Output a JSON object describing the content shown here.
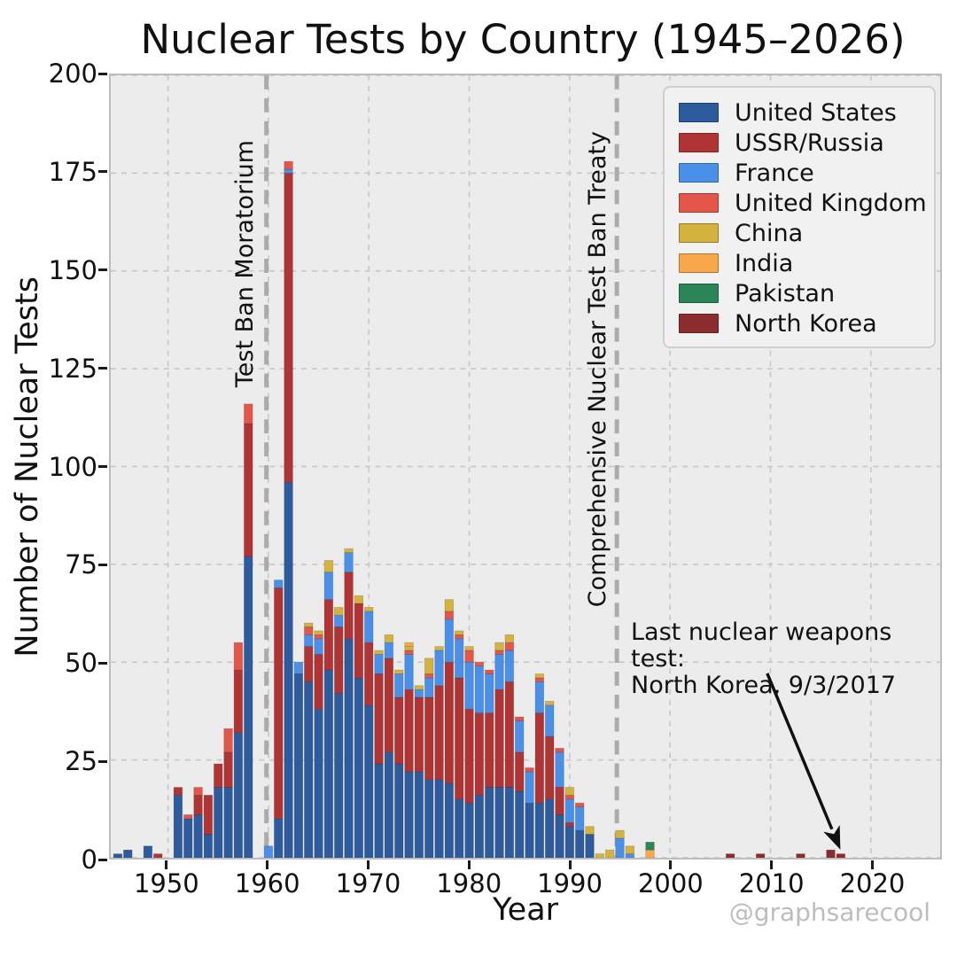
{
  "watermark": "@graphsarecool",
  "chart_data": {
    "type": "bar",
    "stacked": true,
    "title": "Nuclear Tests by Country (1945–2026)",
    "xlabel": "Year",
    "ylabel": "Number of Nuclear Tests",
    "xlim": [
      1944.3,
      2026.9
    ],
    "ylim": [
      0,
      200
    ],
    "x_ticks": [
      1950,
      1960,
      1970,
      1980,
      1990,
      2000,
      2010,
      2020
    ],
    "y_ticks": [
      0,
      25,
      50,
      75,
      100,
      125,
      150,
      175,
      200
    ],
    "grid": true,
    "legend_position": "upper right",
    "bar_width_years": 0.85,
    "plot_background": "#ececec",
    "grid_color": "#c9c9c9",
    "event_line_color": "#ababab",
    "series": [
      {
        "name": "United States",
        "color": "#2d5b9e",
        "data": {
          "1945": 1,
          "1946": 2,
          "1948": 3,
          "1951": 16,
          "1952": 10,
          "1953": 11,
          "1954": 6,
          "1955": 18,
          "1956": 18,
          "1957": 32,
          "1958": 77,
          "1961": 10,
          "1962": 96,
          "1963": 47,
          "1964": 45,
          "1965": 38,
          "1966": 48,
          "1967": 42,
          "1968": 56,
          "1969": 46,
          "1970": 39,
          "1971": 24,
          "1972": 27,
          "1973": 24,
          "1974": 22,
          "1975": 22,
          "1976": 20,
          "1977": 20,
          "1978": 19,
          "1979": 15,
          "1980": 14,
          "1981": 16,
          "1982": 18,
          "1983": 18,
          "1984": 18,
          "1985": 17,
          "1986": 14,
          "1987": 14,
          "1988": 15,
          "1989": 11,
          "1990": 8,
          "1991": 7,
          "1992": 6
        }
      },
      {
        "name": "USSR/Russia",
        "color": "#b13434",
        "data": {
          "1949": 1,
          "1951": 2,
          "1953": 5,
          "1954": 10,
          "1955": 6,
          "1956": 9,
          "1957": 16,
          "1958": 34,
          "1961": 59,
          "1962": 79,
          "1964": 9,
          "1965": 14,
          "1966": 18,
          "1967": 17,
          "1968": 17,
          "1969": 19,
          "1970": 16,
          "1971": 23,
          "1972": 24,
          "1973": 17,
          "1974": 21,
          "1975": 19,
          "1976": 21,
          "1977": 24,
          "1978": 31,
          "1979": 31,
          "1980": 24,
          "1981": 21,
          "1982": 19,
          "1983": 25,
          "1984": 27,
          "1985": 10,
          "1987": 23,
          "1988": 16,
          "1989": 7,
          "1990": 1
        }
      },
      {
        "name": "France",
        "color": "#4a90e8",
        "data": {
          "1960": 3,
          "1961": 2,
          "1962": 1,
          "1963": 3,
          "1964": 3,
          "1965": 4,
          "1966": 7,
          "1967": 3,
          "1968": 5,
          "1970": 8,
          "1971": 5,
          "1972": 4,
          "1973": 6,
          "1974": 9,
          "1975": 2,
          "1976": 5,
          "1977": 9,
          "1978": 11,
          "1979": 10,
          "1980": 12,
          "1981": 12,
          "1982": 10,
          "1983": 9,
          "1984": 8,
          "1985": 8,
          "1986": 8,
          "1987": 8,
          "1988": 8,
          "1989": 9,
          "1990": 6,
          "1991": 6,
          "1995": 5,
          "1996": 1
        }
      },
      {
        "name": "United Kingdom",
        "color": "#e4564a",
        "data": {
          "1952": 1,
          "1953": 2,
          "1956": 6,
          "1957": 7,
          "1958": 5,
          "1962": 2,
          "1964": 2,
          "1965": 1,
          "1974": 1,
          "1976": 1,
          "1978": 2,
          "1979": 1,
          "1980": 3,
          "1981": 1,
          "1982": 1,
          "1983": 1,
          "1984": 2,
          "1985": 1,
          "1986": 1,
          "1987": 1,
          "1989": 1,
          "1990": 1,
          "1991": 1
        }
      },
      {
        "name": "China",
        "color": "#d3b33e",
        "data": {
          "1964": 1,
          "1965": 1,
          "1966": 3,
          "1967": 2,
          "1968": 1,
          "1969": 2,
          "1970": 1,
          "1971": 1,
          "1972": 2,
          "1973": 1,
          "1974": 1,
          "1975": 1,
          "1976": 4,
          "1977": 1,
          "1978": 3,
          "1979": 1,
          "1980": 1,
          "1983": 2,
          "1984": 2,
          "1987": 1,
          "1988": 1,
          "1990": 2,
          "1992": 2,
          "1993": 1,
          "1994": 2,
          "1995": 2,
          "1996": 2
        }
      },
      {
        "name": "India",
        "color": "#f8a84a",
        "data": {
          "1974": 1,
          "1998": 2
        }
      },
      {
        "name": "Pakistan",
        "color": "#2a8659",
        "data": {
          "1998": 2
        }
      },
      {
        "name": "North Korea",
        "color": "#8c2d2d",
        "data": {
          "2006": 1,
          "2009": 1,
          "2013": 1,
          "2016": 2,
          "2017": 1
        }
      }
    ],
    "events": [
      {
        "label": "Test Ban Moratorium",
        "year": 1959.8
      },
      {
        "label": "Comprehensive Nuclear Test Ban Treaty",
        "year": 1994.7
      }
    ],
    "annotation": {
      "lines": [
        "Last nuclear weapons test:",
        "North Korea, 9/3/2017"
      ],
      "points_to_year": 2017
    }
  }
}
